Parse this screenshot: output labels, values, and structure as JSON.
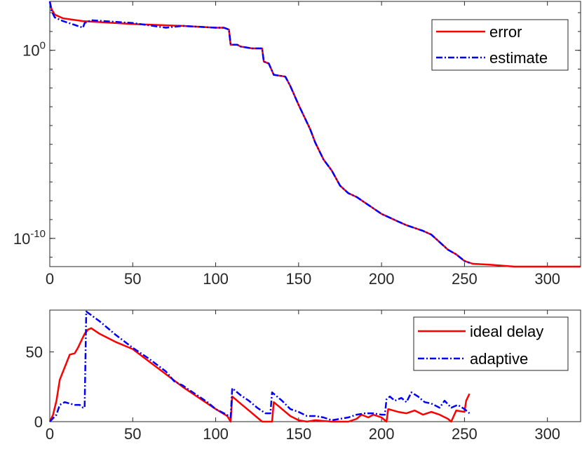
{
  "chart_data": [
    {
      "type": "line",
      "y_scale": "log",
      "xlim": [
        0,
        320
      ],
      "ylim_exponent": [
        -11.5,
        2.6
      ],
      "x_ticks": [
        0,
        50,
        100,
        150,
        200,
        250,
        300
      ],
      "y_tick_labels": [
        {
          "exponent": 0,
          "base": "10",
          "sup": "0"
        },
        {
          "exponent": -10,
          "base": "10",
          "sup": "-10"
        }
      ],
      "grid": false,
      "legend_position": "top-right",
      "series": [
        {
          "name": "error",
          "color": "#ff0000",
          "style": "solid",
          "points": [
            [
              0,
              2.6
            ],
            [
              1,
              2.2
            ],
            [
              3,
              1.9
            ],
            [
              8,
              1.7
            ],
            [
              20,
              1.55
            ],
            [
              50,
              1.4
            ],
            [
              80,
              1.3
            ],
            [
              100,
              1.2
            ],
            [
              105,
              1.2
            ],
            [
              108,
              1.1
            ],
            [
              109,
              0.3
            ],
            [
              113,
              0.3
            ],
            [
              115,
              0.2
            ],
            [
              122,
              0.1
            ],
            [
              128,
              0.1
            ],
            [
              129,
              -0.6
            ],
            [
              132,
              -0.7
            ],
            [
              135,
              -1.3
            ],
            [
              142,
              -1.4
            ],
            [
              145,
              -1.9
            ],
            [
              150,
              -2.9
            ],
            [
              157,
              -4.2
            ],
            [
              160,
              -4.9
            ],
            [
              165,
              -5.8
            ],
            [
              170,
              -6.4
            ],
            [
              175,
              -7.2
            ],
            [
              180,
              -7.6
            ],
            [
              185,
              -7.8
            ],
            [
              190,
              -8.1
            ],
            [
              195,
              -8.4
            ],
            [
              200,
              -8.7
            ],
            [
              205,
              -8.9
            ],
            [
              210,
              -9.1
            ],
            [
              215,
              -9.3
            ],
            [
              220,
              -9.45
            ],
            [
              225,
              -9.6
            ],
            [
              230,
              -9.8
            ],
            [
              235,
              -10.2
            ],
            [
              240,
              -10.6
            ],
            [
              245,
              -10.85
            ],
            [
              250,
              -11.2
            ],
            [
              255,
              -11.35
            ],
            [
              265,
              -11.4
            ],
            [
              280,
              -11.5
            ],
            [
              320,
              -11.5
            ]
          ]
        },
        {
          "name": "estimate",
          "color": "#0000ff",
          "style": "dashdot",
          "points": [
            [
              0,
              2.6
            ],
            [
              1,
              2.1
            ],
            [
              3,
              1.75
            ],
            [
              8,
              1.55
            ],
            [
              15,
              1.35
            ],
            [
              20,
              1.2
            ],
            [
              21,
              1.45
            ],
            [
              25,
              1.6
            ],
            [
              50,
              1.45
            ],
            [
              70,
              1.2
            ],
            [
              80,
              1.3
            ],
            [
              100,
              1.2
            ],
            [
              105,
              1.2
            ],
            [
              108,
              1.1
            ],
            [
              109,
              0.3
            ],
            [
              113,
              0.3
            ],
            [
              115,
              0.2
            ],
            [
              122,
              0.1
            ],
            [
              128,
              0.1
            ],
            [
              129,
              -0.6
            ],
            [
              132,
              -0.7
            ],
            [
              135,
              -1.3
            ],
            [
              142,
              -1.4
            ],
            [
              145,
              -1.9
            ],
            [
              150,
              -2.9
            ],
            [
              157,
              -4.2
            ],
            [
              160,
              -4.9
            ],
            [
              165,
              -5.8
            ],
            [
              170,
              -6.4
            ],
            [
              175,
              -7.2
            ],
            [
              180,
              -7.6
            ],
            [
              185,
              -7.8
            ],
            [
              190,
              -8.1
            ],
            [
              195,
              -8.4
            ],
            [
              200,
              -8.7
            ],
            [
              205,
              -8.9
            ],
            [
              210,
              -9.1
            ],
            [
              215,
              -9.3
            ],
            [
              220,
              -9.45
            ],
            [
              225,
              -9.6
            ],
            [
              230,
              -9.8
            ],
            [
              235,
              -10.2
            ],
            [
              240,
              -10.6
            ],
            [
              245,
              -10.85
            ],
            [
              250,
              -11.2
            ],
            [
              253,
              -11.3
            ]
          ]
        }
      ]
    },
    {
      "type": "line",
      "xlim": [
        0,
        320
      ],
      "ylim": [
        0,
        80
      ],
      "x_ticks": [
        0,
        50,
        100,
        150,
        200,
        250,
        300
      ],
      "y_ticks": [
        0,
        50
      ],
      "grid": false,
      "legend_position": "top-right",
      "series": [
        {
          "name": "ideal delay",
          "color": "#ff0000",
          "style": "solid",
          "points": [
            [
              0,
              0
            ],
            [
              2,
              5
            ],
            [
              4,
              15
            ],
            [
              6,
              30
            ],
            [
              8,
              36
            ],
            [
              10,
              42
            ],
            [
              12,
              48
            ],
            [
              15,
              49
            ],
            [
              17,
              53
            ],
            [
              19,
              58
            ],
            [
              21,
              63
            ],
            [
              23,
              66
            ],
            [
              25,
              67
            ],
            [
              30,
              63
            ],
            [
              40,
              57
            ],
            [
              50,
              52
            ],
            [
              60,
              43
            ],
            [
              70,
              34
            ],
            [
              80,
              25
            ],
            [
              90,
              17
            ],
            [
              100,
              9
            ],
            [
              107,
              4
            ],
            [
              109,
              0
            ],
            [
              110,
              18
            ],
            [
              115,
              13
            ],
            [
              120,
              8
            ],
            [
              125,
              3
            ],
            [
              128,
              0
            ],
            [
              134,
              0
            ],
            [
              135,
              14
            ],
            [
              140,
              9
            ],
            [
              145,
              4
            ],
            [
              150,
              1
            ],
            [
              155,
              0
            ],
            [
              160,
              1
            ],
            [
              170,
              0
            ],
            [
              180,
              0
            ],
            [
              185,
              2
            ],
            [
              188,
              5
            ],
            [
              192,
              3
            ],
            [
              195,
              5
            ],
            [
              200,
              3
            ],
            [
              203,
              0
            ],
            [
              204,
              9
            ],
            [
              210,
              7
            ],
            [
              215,
              6
            ],
            [
              220,
              8
            ],
            [
              225,
              5
            ],
            [
              230,
              7
            ],
            [
              235,
              5
            ],
            [
              240,
              2
            ],
            [
              242,
              0
            ],
            [
              245,
              8
            ],
            [
              250,
              7
            ],
            [
              251,
              15
            ],
            [
              253,
              20
            ]
          ]
        },
        {
          "name": "adaptive",
          "color": "#0000ff",
          "style": "dashdot",
          "points": [
            [
              0,
              0
            ],
            [
              4,
              5
            ],
            [
              6,
              12
            ],
            [
              9,
              14
            ],
            [
              12,
              13
            ],
            [
              15,
              12
            ],
            [
              18,
              12
            ],
            [
              20,
              10
            ],
            [
              21,
              10
            ],
            [
              22,
              79
            ],
            [
              30,
              72
            ],
            [
              40,
              62
            ],
            [
              50,
              53
            ],
            [
              60,
              45
            ],
            [
              70,
              36
            ],
            [
              75,
              29
            ],
            [
              80,
              26
            ],
            [
              85,
              22
            ],
            [
              90,
              18
            ],
            [
              95,
              14
            ],
            [
              100,
              9
            ],
            [
              105,
              6
            ],
            [
              108,
              4
            ],
            [
              109,
              3
            ],
            [
              110,
              24
            ],
            [
              115,
              19
            ],
            [
              120,
              15
            ],
            [
              125,
              10
            ],
            [
              130,
              6
            ],
            [
              133,
              6
            ],
            [
              134,
              21
            ],
            [
              140,
              15
            ],
            [
              145,
              9
            ],
            [
              150,
              7
            ],
            [
              155,
              4
            ],
            [
              160,
              4
            ],
            [
              165,
              3
            ],
            [
              170,
              1
            ],
            [
              175,
              2
            ],
            [
              180,
              3
            ],
            [
              185,
              5
            ],
            [
              190,
              6
            ],
            [
              195,
              6
            ],
            [
              200,
              5
            ],
            [
              202,
              5
            ],
            [
              203,
              16
            ],
            [
              205,
              18
            ],
            [
              208,
              15
            ],
            [
              212,
              17
            ],
            [
              215,
              14
            ],
            [
              218,
              21
            ],
            [
              222,
              18
            ],
            [
              226,
              14
            ],
            [
              230,
              13
            ],
            [
              235,
              10
            ],
            [
              238,
              15
            ],
            [
              242,
              10
            ],
            [
              246,
              12
            ],
            [
              250,
              9
            ],
            [
              253,
              6
            ]
          ]
        }
      ]
    }
  ]
}
